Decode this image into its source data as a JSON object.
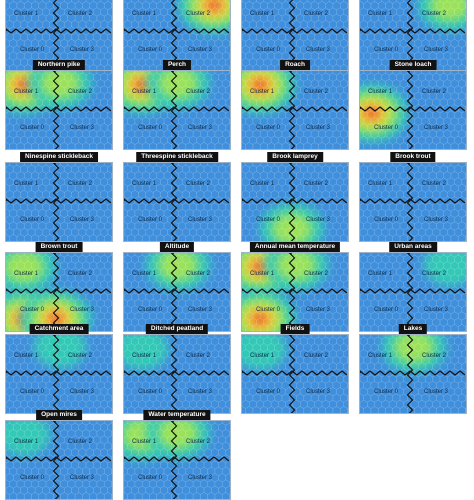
{
  "cluster_labels": [
    "Cluster 1",
    "Cluster 2",
    "Cluster 0",
    "Cluster 3"
  ],
  "panels": [
    {
      "title": "",
      "col": 0,
      "row": 0,
      "hot": []
    },
    {
      "title": "",
      "col": 1,
      "row": 0,
      "hot": [
        {
          "pos": "tr",
          "level": "high"
        }
      ]
    },
    {
      "title": "",
      "col": 2,
      "row": 0,
      "hot": []
    },
    {
      "title": "",
      "col": 3,
      "row": 0,
      "hot": [
        {
          "pos": "tr",
          "level": "mid"
        }
      ]
    },
    {
      "title": "Northern pike",
      "col": 0,
      "row": 1,
      "hot": [
        {
          "pos": "tl",
          "level": "high"
        },
        {
          "pos": "tc",
          "level": "mid"
        }
      ]
    },
    {
      "title": "Perch",
      "col": 1,
      "row": 1,
      "hot": [
        {
          "pos": "tl",
          "level": "high"
        },
        {
          "pos": "tc",
          "level": "mid"
        }
      ]
    },
    {
      "title": "Roach",
      "col": 2,
      "row": 1,
      "hot": [
        {
          "pos": "tl",
          "level": "high"
        }
      ]
    },
    {
      "title": "Stone loach",
      "col": 3,
      "row": 1,
      "hot": [
        {
          "pos": "ml",
          "level": "high"
        }
      ]
    },
    {
      "title": "Ninespine stickleback",
      "col": 0,
      "row": 2,
      "hot": []
    },
    {
      "title": "Threespine stickleback",
      "col": 1,
      "row": 2,
      "hot": []
    },
    {
      "title": "Brook lamprey",
      "col": 2,
      "row": 2,
      "hot": [
        {
          "pos": "bc",
          "level": "mid"
        }
      ]
    },
    {
      "title": "Brook trout",
      "col": 3,
      "row": 2,
      "hot": []
    },
    {
      "title": "Brown trout",
      "col": 0,
      "row": 3,
      "hot": [
        {
          "pos": "tl",
          "level": "mid"
        },
        {
          "pos": "bl",
          "level": "high"
        },
        {
          "pos": "bc",
          "level": "high"
        }
      ]
    },
    {
      "title": "Altitude",
      "col": 1,
      "row": 3,
      "hot": [
        {
          "pos": "tc",
          "level": "mid"
        }
      ]
    },
    {
      "title": "Annual mean temperature",
      "col": 2,
      "row": 3,
      "hot": [
        {
          "pos": "tl",
          "level": "high"
        },
        {
          "pos": "bl",
          "level": "high"
        },
        {
          "pos": "tc",
          "level": "mid"
        }
      ]
    },
    {
      "title": "Urban areas",
      "col": 3,
      "row": 3,
      "hot": [
        {
          "pos": "tr",
          "level": "low"
        }
      ]
    },
    {
      "title": "Catchment area",
      "col": 0,
      "row": 4,
      "hot": [
        {
          "pos": "tc",
          "level": "low"
        }
      ]
    },
    {
      "title": "Ditched peatland",
      "col": 1,
      "row": 4,
      "hot": [
        {
          "pos": "tl",
          "level": "low"
        }
      ]
    },
    {
      "title": "Fields",
      "col": 2,
      "row": 4,
      "hot": [
        {
          "pos": "tl",
          "level": "low"
        }
      ]
    },
    {
      "title": "Lakes",
      "col": 3,
      "row": 4,
      "hot": [
        {
          "pos": "tc",
          "level": "mid"
        }
      ]
    },
    {
      "title": "Open mires",
      "col": 0,
      "row": 5,
      "hot": [
        {
          "pos": "tl",
          "level": "low"
        }
      ]
    },
    {
      "title": "Water temperature",
      "col": 1,
      "row": 5,
      "hot": [
        {
          "pos": "tl",
          "level": "mid"
        },
        {
          "pos": "tc",
          "level": "mid"
        }
      ]
    }
  ],
  "colors": {
    "base": "#3f8fdc",
    "low": "#33c9b6",
    "mid": "#9be25a",
    "high": "#f2d33a",
    "hot": "#e8552c",
    "border": "#111111"
  }
}
